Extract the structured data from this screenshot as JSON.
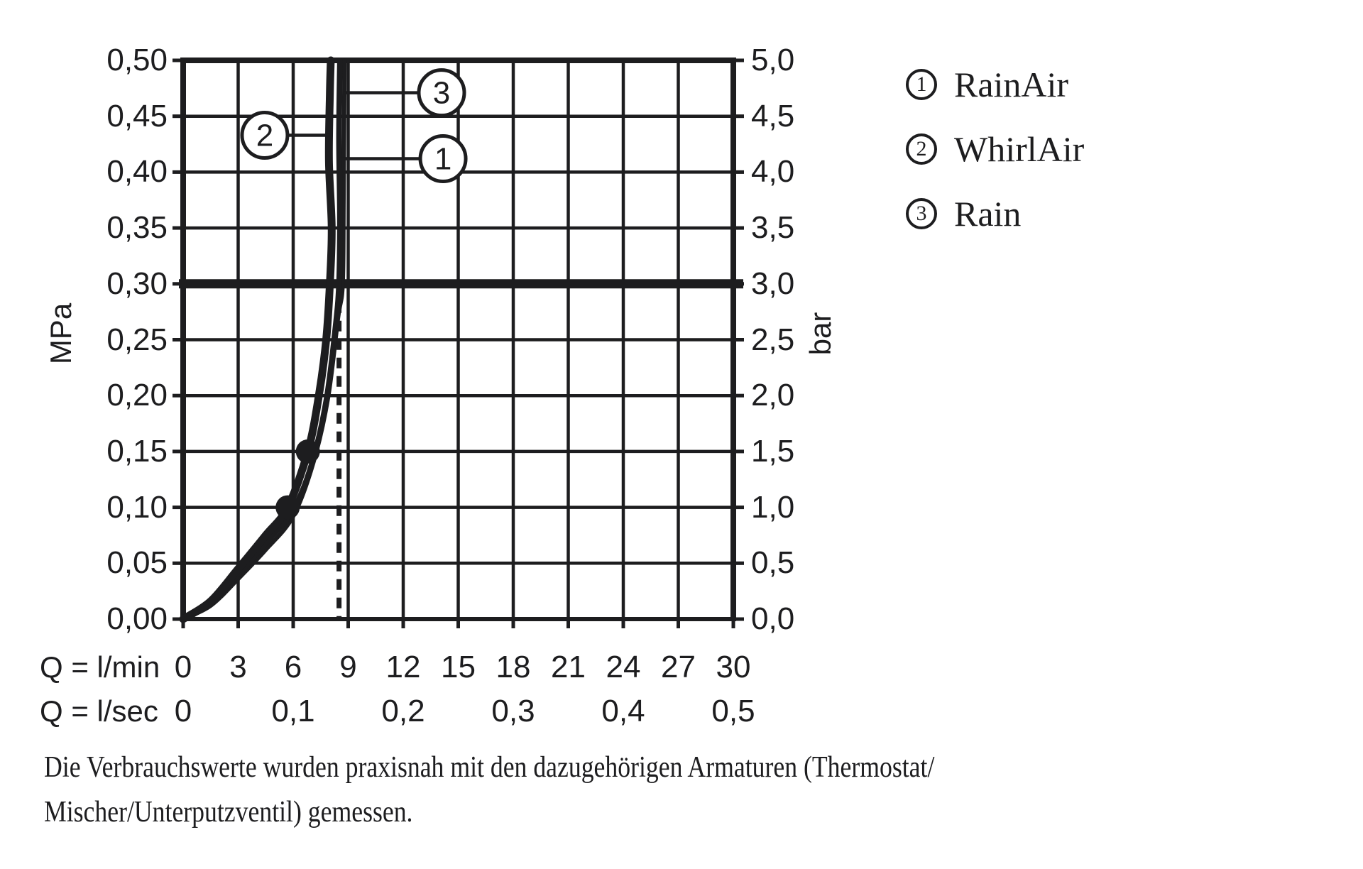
{
  "page": {
    "background": "#ffffff",
    "ink": "#1d1d1f"
  },
  "chart_data": {
    "type": "line",
    "grid": true,
    "x_axis": {
      "label_primary": "Q = l/min",
      "label_secondary": "Q = l/sec",
      "range_lmin": [
        0,
        30
      ],
      "gridline_step_lmin": 3,
      "ticks_primary": [
        "0",
        "3",
        "6",
        "9",
        "12",
        "15",
        "18",
        "21",
        "24",
        "27",
        "30"
      ],
      "ticks_secondary": [
        {
          "value_lmin": 0,
          "label": "0"
        },
        {
          "value_lmin": 6,
          "label": "0,1"
        },
        {
          "value_lmin": 12,
          "label": "0,2"
        },
        {
          "value_lmin": 18,
          "label": "0,3"
        },
        {
          "value_lmin": 24,
          "label": "0,4"
        },
        {
          "value_lmin": 30,
          "label": "0,5"
        }
      ]
    },
    "y_axis_left": {
      "unit": "MPa",
      "range": [
        0,
        0.5
      ],
      "tick_step": 0.05,
      "tick_labels": [
        "0,00",
        "0,05",
        "0,10",
        "0,15",
        "0,20",
        "0,25",
        "0,30",
        "0,35",
        "0,40",
        "0,45",
        "0,50"
      ]
    },
    "y_axis_right": {
      "unit": "bar",
      "range": [
        0,
        5
      ],
      "tick_step": 0.5,
      "tick_labels": [
        "0,0",
        "0,5",
        "1,0",
        "1,5",
        "2,0",
        "2,5",
        "3,0",
        "3,5",
        "4,0",
        "4,5",
        "5,0"
      ]
    },
    "bold_pressure_line_mpa": 0.3,
    "dashed_vertical_line": {
      "q_lmin": 8.5,
      "from_mpa": 0,
      "to_mpa": 0.3
    },
    "series": [
      {
        "id": "1",
        "name": "RainAir",
        "stroke_width": 8,
        "points": [
          [
            0,
            0
          ],
          [
            1.5,
            0.014
          ],
          [
            3,
            0.04
          ],
          [
            4.5,
            0.068
          ],
          [
            6,
            0.098
          ],
          [
            7,
            0.138
          ],
          [
            7.8,
            0.195
          ],
          [
            8.3,
            0.26
          ],
          [
            8.5,
            0.3
          ],
          [
            8.55,
            0.36
          ],
          [
            8.5,
            0.43
          ],
          [
            8.55,
            0.5
          ]
        ]
      },
      {
        "id": "2",
        "name": "WhirlAir",
        "stroke_width": 11,
        "points": [
          [
            0,
            0
          ],
          [
            1.5,
            0.016
          ],
          [
            3,
            0.045
          ],
          [
            4.5,
            0.075
          ],
          [
            5.7,
            0.1
          ],
          [
            6.8,
            0.15
          ],
          [
            7.4,
            0.2
          ],
          [
            7.8,
            0.25
          ],
          [
            8.0,
            0.3
          ],
          [
            8.1,
            0.35
          ],
          [
            7.95,
            0.41
          ],
          [
            8.0,
            0.47
          ],
          [
            8.05,
            0.5
          ]
        ],
        "markers": [
          [
            5.7,
            0.1
          ],
          [
            6.8,
            0.15
          ]
        ]
      },
      {
        "id": "3",
        "name": "Rain",
        "stroke_width": 6,
        "points": [
          [
            0,
            0
          ],
          [
            1.5,
            0.012
          ],
          [
            3,
            0.036
          ],
          [
            4.5,
            0.062
          ],
          [
            6,
            0.092
          ],
          [
            7.1,
            0.14
          ],
          [
            7.9,
            0.198
          ],
          [
            8.45,
            0.27
          ],
          [
            8.7,
            0.3
          ],
          [
            8.75,
            0.38
          ],
          [
            8.8,
            0.5
          ]
        ]
      }
    ],
    "callouts": [
      {
        "num": "2",
        "series": "2",
        "circle_q_lmin": 4.45,
        "circle_mpa": 0.433,
        "attach_q_lmin": 7.98
      },
      {
        "num": "3",
        "series": "3",
        "circle_q_lmin": 14.09,
        "circle_mpa": 0.471,
        "attach_q_lmin": 8.78
      },
      {
        "num": "1",
        "series": "1",
        "circle_q_lmin": 14.17,
        "circle_mpa": 0.412,
        "attach_q_lmin": 8.52
      }
    ],
    "legend": [
      {
        "num": "1",
        "label": "RainAir"
      },
      {
        "num": "2",
        "label": "WhirlAir"
      },
      {
        "num": "3",
        "label": "Rain"
      }
    ]
  },
  "caption": {
    "line1": "Die Verbrauchswerte wurden praxisnah mit den dazugehörigen Armaturen (Thermostat/",
    "line2": "Mischer/Unterputzventil) gemessen."
  }
}
